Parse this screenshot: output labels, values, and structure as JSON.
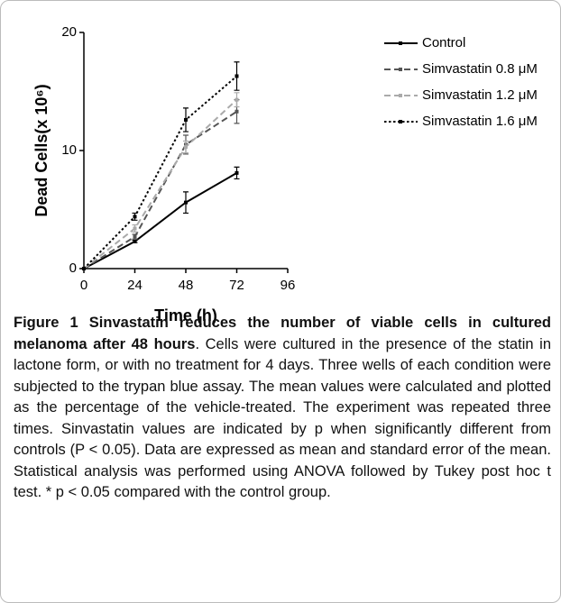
{
  "chart_data": {
    "type": "line",
    "xlabel": "Time  (h)",
    "ylabel": "Dead Cells(x 10⁶)",
    "x": [
      0,
      24,
      48,
      72
    ],
    "xlim": [
      0,
      96
    ],
    "xticks": [
      0,
      24,
      48,
      72,
      96
    ],
    "ylim": [
      0,
      20
    ],
    "yticks": [
      0,
      10,
      20
    ],
    "series": [
      {
        "name": "Control",
        "color": "#000000",
        "dash": "solid",
        "values": [
          0,
          2.3,
          5.6,
          8.1
        ],
        "errors": [
          0,
          0.1,
          0.9,
          0.5
        ]
      },
      {
        "name": "Simvastatin 0.8 μM",
        "color": "#555555",
        "dash": "dashed",
        "values": [
          0,
          2.7,
          10.5,
          13.3
        ],
        "errors": [
          0,
          0.2,
          0.8,
          1.0
        ]
      },
      {
        "name": "Simvastatin 1.2 μM",
        "color": "#aaaaaa",
        "dash": "dashed",
        "values": [
          0,
          3.4,
          10.3,
          14.3
        ],
        "errors": [
          0,
          0.3,
          0.5,
          0.6
        ]
      },
      {
        "name": "Simvastatin 1.6 μM",
        "color": "#000000",
        "dash": "dotted",
        "values": [
          0,
          4.4,
          12.6,
          16.3
        ],
        "errors": [
          0,
          0.3,
          1.0,
          1.2
        ]
      }
    ]
  },
  "caption": {
    "title": "Figure 1 Sinvastatin reduces the number of viable cells in cultured melanoma after 48 hours",
    "text": ". Cells were cultured in the presence of the statin in lactone form, or with no treatment for 4 days. Three wells of each condition were subjected to the trypan blue assay. The mean values were calculated and plotted as the percentage of the vehicle-treated. The experiment was repeated three times. Sinvastatin values are indicated by p when significantly different from controls (P < 0.05). Data are expressed as mean and standard error of the mean. Statistical analysis was performed using ANOVA followed by Tukey post hoc t test. * p < 0.05 compared with the control group."
  }
}
